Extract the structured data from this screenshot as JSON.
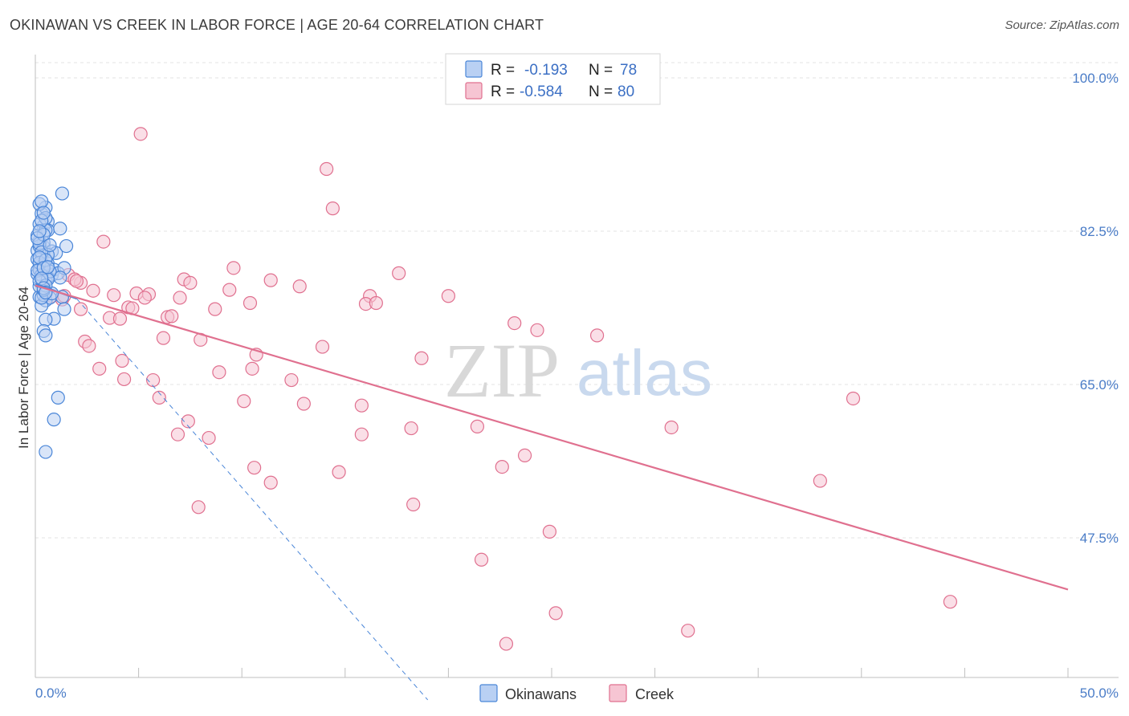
{
  "title": "OKINAWAN VS CREEK IN LABOR FORCE | AGE 20-64 CORRELATION CHART",
  "source": "Source: ZipAtlas.com",
  "colors": {
    "blue": "#4a86d8",
    "blue_fill": "#b9d0f3",
    "pink": "#e0708f",
    "pink_fill": "#f6c5d3",
    "grid": "#e3e3e3",
    "tick_text": "#4a7cc7"
  },
  "legend_box": {
    "rows": [
      {
        "r_label": "R =",
        "r_value": "-0.193",
        "n_label": "N =",
        "n_value": "78"
      },
      {
        "r_label": "R =",
        "r_value": "-0.584",
        "n_label": "N =",
        "n_value": "80"
      }
    ]
  },
  "watermark": {
    "zip": "ZIP",
    "atlas": "atlas"
  },
  "chart_data": {
    "type": "scatter",
    "title": "OKINAWAN VS CREEK IN LABOR FORCE | AGE 20-64 CORRELATION CHART",
    "xlabel": "",
    "ylabel": "In Labor Force | Age 20-64",
    "xlim": [
      0,
      50
    ],
    "ylim": [
      30,
      101
    ],
    "x_tick_labels": [
      "0.0%",
      "50.0%"
    ],
    "y_ticks": [
      47.5,
      65.0,
      82.5,
      100.0
    ],
    "y_tick_labels": [
      "47.5%",
      "65.0%",
      "82.5%",
      "100.0%"
    ],
    "grid": true,
    "legend_position": "bottom",
    "series": [
      {
        "name": "Okinawans",
        "R": -0.193,
        "N": 78,
        "points": [
          [
            0.1,
            80.3
          ],
          [
            0.2,
            78.4
          ],
          [
            0.1,
            77.6
          ],
          [
            0.3,
            79.3
          ],
          [
            0.2,
            81.4
          ],
          [
            0.4,
            83.1
          ],
          [
            0.3,
            84.5
          ],
          [
            0.5,
            85.2
          ],
          [
            0.2,
            85.6
          ],
          [
            0.6,
            83.6
          ],
          [
            0.1,
            82.0
          ],
          [
            0.4,
            80.7
          ],
          [
            0.3,
            79.8
          ],
          [
            0.6,
            78.8
          ],
          [
            0.2,
            78.1
          ],
          [
            0.8,
            77.5
          ],
          [
            0.5,
            77.0
          ],
          [
            0.3,
            76.7
          ],
          [
            0.9,
            78.1
          ],
          [
            1.1,
            77.7
          ],
          [
            0.2,
            75.0
          ],
          [
            0.5,
            74.6
          ],
          [
            0.7,
            74.9
          ],
          [
            0.3,
            74.0
          ],
          [
            0.4,
            75.2
          ],
          [
            0.2,
            76.2
          ],
          [
            0.6,
            82.6
          ],
          [
            0.4,
            81.2
          ],
          [
            0.8,
            80.2
          ],
          [
            1.0,
            80.0
          ],
          [
            1.3,
            86.8
          ],
          [
            1.2,
            82.8
          ],
          [
            1.5,
            80.8
          ],
          [
            1.4,
            78.3
          ],
          [
            1.2,
            77.2
          ],
          [
            1.3,
            75.0
          ],
          [
            1.4,
            73.6
          ],
          [
            0.9,
            72.5
          ],
          [
            0.5,
            72.4
          ],
          [
            0.4,
            71.1
          ],
          [
            0.5,
            70.6
          ],
          [
            1.1,
            63.5
          ],
          [
            0.9,
            61.0
          ],
          [
            0.5,
            57.3
          ],
          [
            0.2,
            83.3
          ],
          [
            0.3,
            85.9
          ],
          [
            0.5,
            84.0
          ],
          [
            0.2,
            80.8
          ],
          [
            0.1,
            79.3
          ],
          [
            0.4,
            78.6
          ],
          [
            0.6,
            77.2
          ],
          [
            0.7,
            77.9
          ],
          [
            0.3,
            77.5
          ],
          [
            0.2,
            81.1
          ],
          [
            0.5,
            82.6
          ],
          [
            0.4,
            82.1
          ],
          [
            0.6,
            79.8
          ],
          [
            0.3,
            80.1
          ],
          [
            0.2,
            78.9
          ],
          [
            0.1,
            78.0
          ],
          [
            0.8,
            75.4
          ],
          [
            0.3,
            74.9
          ],
          [
            0.4,
            75.8
          ],
          [
            0.6,
            77.0
          ],
          [
            0.5,
            79.2
          ],
          [
            0.2,
            79.5
          ],
          [
            0.3,
            83.7
          ],
          [
            0.4,
            84.6
          ],
          [
            0.1,
            81.7
          ],
          [
            0.2,
            76.8
          ],
          [
            0.5,
            76.3
          ],
          [
            0.7,
            80.9
          ],
          [
            0.4,
            78.3
          ],
          [
            0.3,
            77.1
          ],
          [
            0.6,
            78.4
          ],
          [
            0.2,
            82.5
          ],
          [
            0.4,
            76.0
          ],
          [
            0.5,
            75.5
          ]
        ]
      },
      {
        "name": "Creek",
        "R": -0.584,
        "N": 80,
        "points": [
          [
            5.1,
            93.6
          ],
          [
            14.1,
            89.6
          ],
          [
            14.4,
            85.1
          ],
          [
            3.3,
            81.3
          ],
          [
            9.6,
            78.3
          ],
          [
            17.6,
            77.7
          ],
          [
            7.2,
            77.0
          ],
          [
            11.4,
            76.9
          ],
          [
            12.8,
            76.2
          ],
          [
            7.5,
            76.6
          ],
          [
            9.4,
            75.8
          ],
          [
            2.8,
            75.7
          ],
          [
            3.8,
            75.2
          ],
          [
            4.9,
            75.4
          ],
          [
            5.5,
            75.3
          ],
          [
            5.3,
            74.9
          ],
          [
            7.0,
            74.9
          ],
          [
            10.4,
            74.3
          ],
          [
            16.2,
            75.1
          ],
          [
            20.0,
            75.1
          ],
          [
            2.2,
            76.6
          ],
          [
            1.6,
            77.5
          ],
          [
            1.9,
            77.0
          ],
          [
            0.8,
            75.1
          ],
          [
            1.3,
            74.7
          ],
          [
            2.2,
            73.6
          ],
          [
            4.5,
            73.8
          ],
          [
            8.7,
            73.6
          ],
          [
            6.4,
            72.7
          ],
          [
            6.6,
            72.8
          ],
          [
            3.6,
            72.6
          ],
          [
            4.1,
            72.5
          ],
          [
            16.0,
            74.2
          ],
          [
            23.2,
            72.0
          ],
          [
            24.3,
            71.2
          ],
          [
            6.2,
            70.3
          ],
          [
            8.0,
            70.1
          ],
          [
            27.2,
            70.6
          ],
          [
            2.4,
            69.9
          ],
          [
            2.6,
            69.4
          ],
          [
            13.9,
            69.3
          ],
          [
            10.7,
            68.4
          ],
          [
            18.7,
            68.0
          ],
          [
            4.2,
            67.7
          ],
          [
            3.1,
            66.8
          ],
          [
            10.5,
            66.8
          ],
          [
            8.9,
            66.4
          ],
          [
            4.3,
            65.6
          ],
          [
            5.7,
            65.5
          ],
          [
            12.4,
            65.5
          ],
          [
            6.0,
            63.5
          ],
          [
            10.1,
            63.1
          ],
          [
            13.0,
            62.8
          ],
          [
            15.8,
            62.6
          ],
          [
            7.4,
            60.8
          ],
          [
            18.2,
            60.0
          ],
          [
            21.4,
            60.2
          ],
          [
            30.8,
            60.1
          ],
          [
            39.6,
            63.4
          ],
          [
            6.9,
            59.3
          ],
          [
            8.4,
            58.9
          ],
          [
            15.8,
            59.3
          ],
          [
            23.7,
            56.9
          ],
          [
            10.6,
            55.5
          ],
          [
            14.7,
            55.0
          ],
          [
            22.6,
            55.6
          ],
          [
            11.4,
            53.8
          ],
          [
            38.0,
            54.0
          ],
          [
            18.3,
            51.3
          ],
          [
            7.9,
            51.0
          ],
          [
            24.9,
            48.2
          ],
          [
            21.6,
            45.0
          ],
          [
            44.3,
            40.2
          ],
          [
            25.2,
            38.9
          ],
          [
            31.6,
            36.9
          ],
          [
            22.8,
            35.4
          ],
          [
            4.7,
            73.7
          ],
          [
            16.5,
            74.3
          ],
          [
            2.0,
            76.8
          ],
          [
            1.4,
            75.1
          ]
        ]
      }
    ],
    "trend_lines": [
      {
        "series": "Okinawans",
        "style": "solid",
        "x": [
          0,
          2.0
        ],
        "y": [
          76.5,
          74.8
        ]
      },
      {
        "series": "Okinawans",
        "style": "dashed",
        "x": [
          2.0,
          19.0
        ],
        "y": [
          74.8,
          29.0
        ]
      },
      {
        "series": "Creek",
        "style": "solid",
        "x": [
          0,
          50
        ],
        "y": [
          76.3,
          41.6
        ]
      }
    ]
  }
}
